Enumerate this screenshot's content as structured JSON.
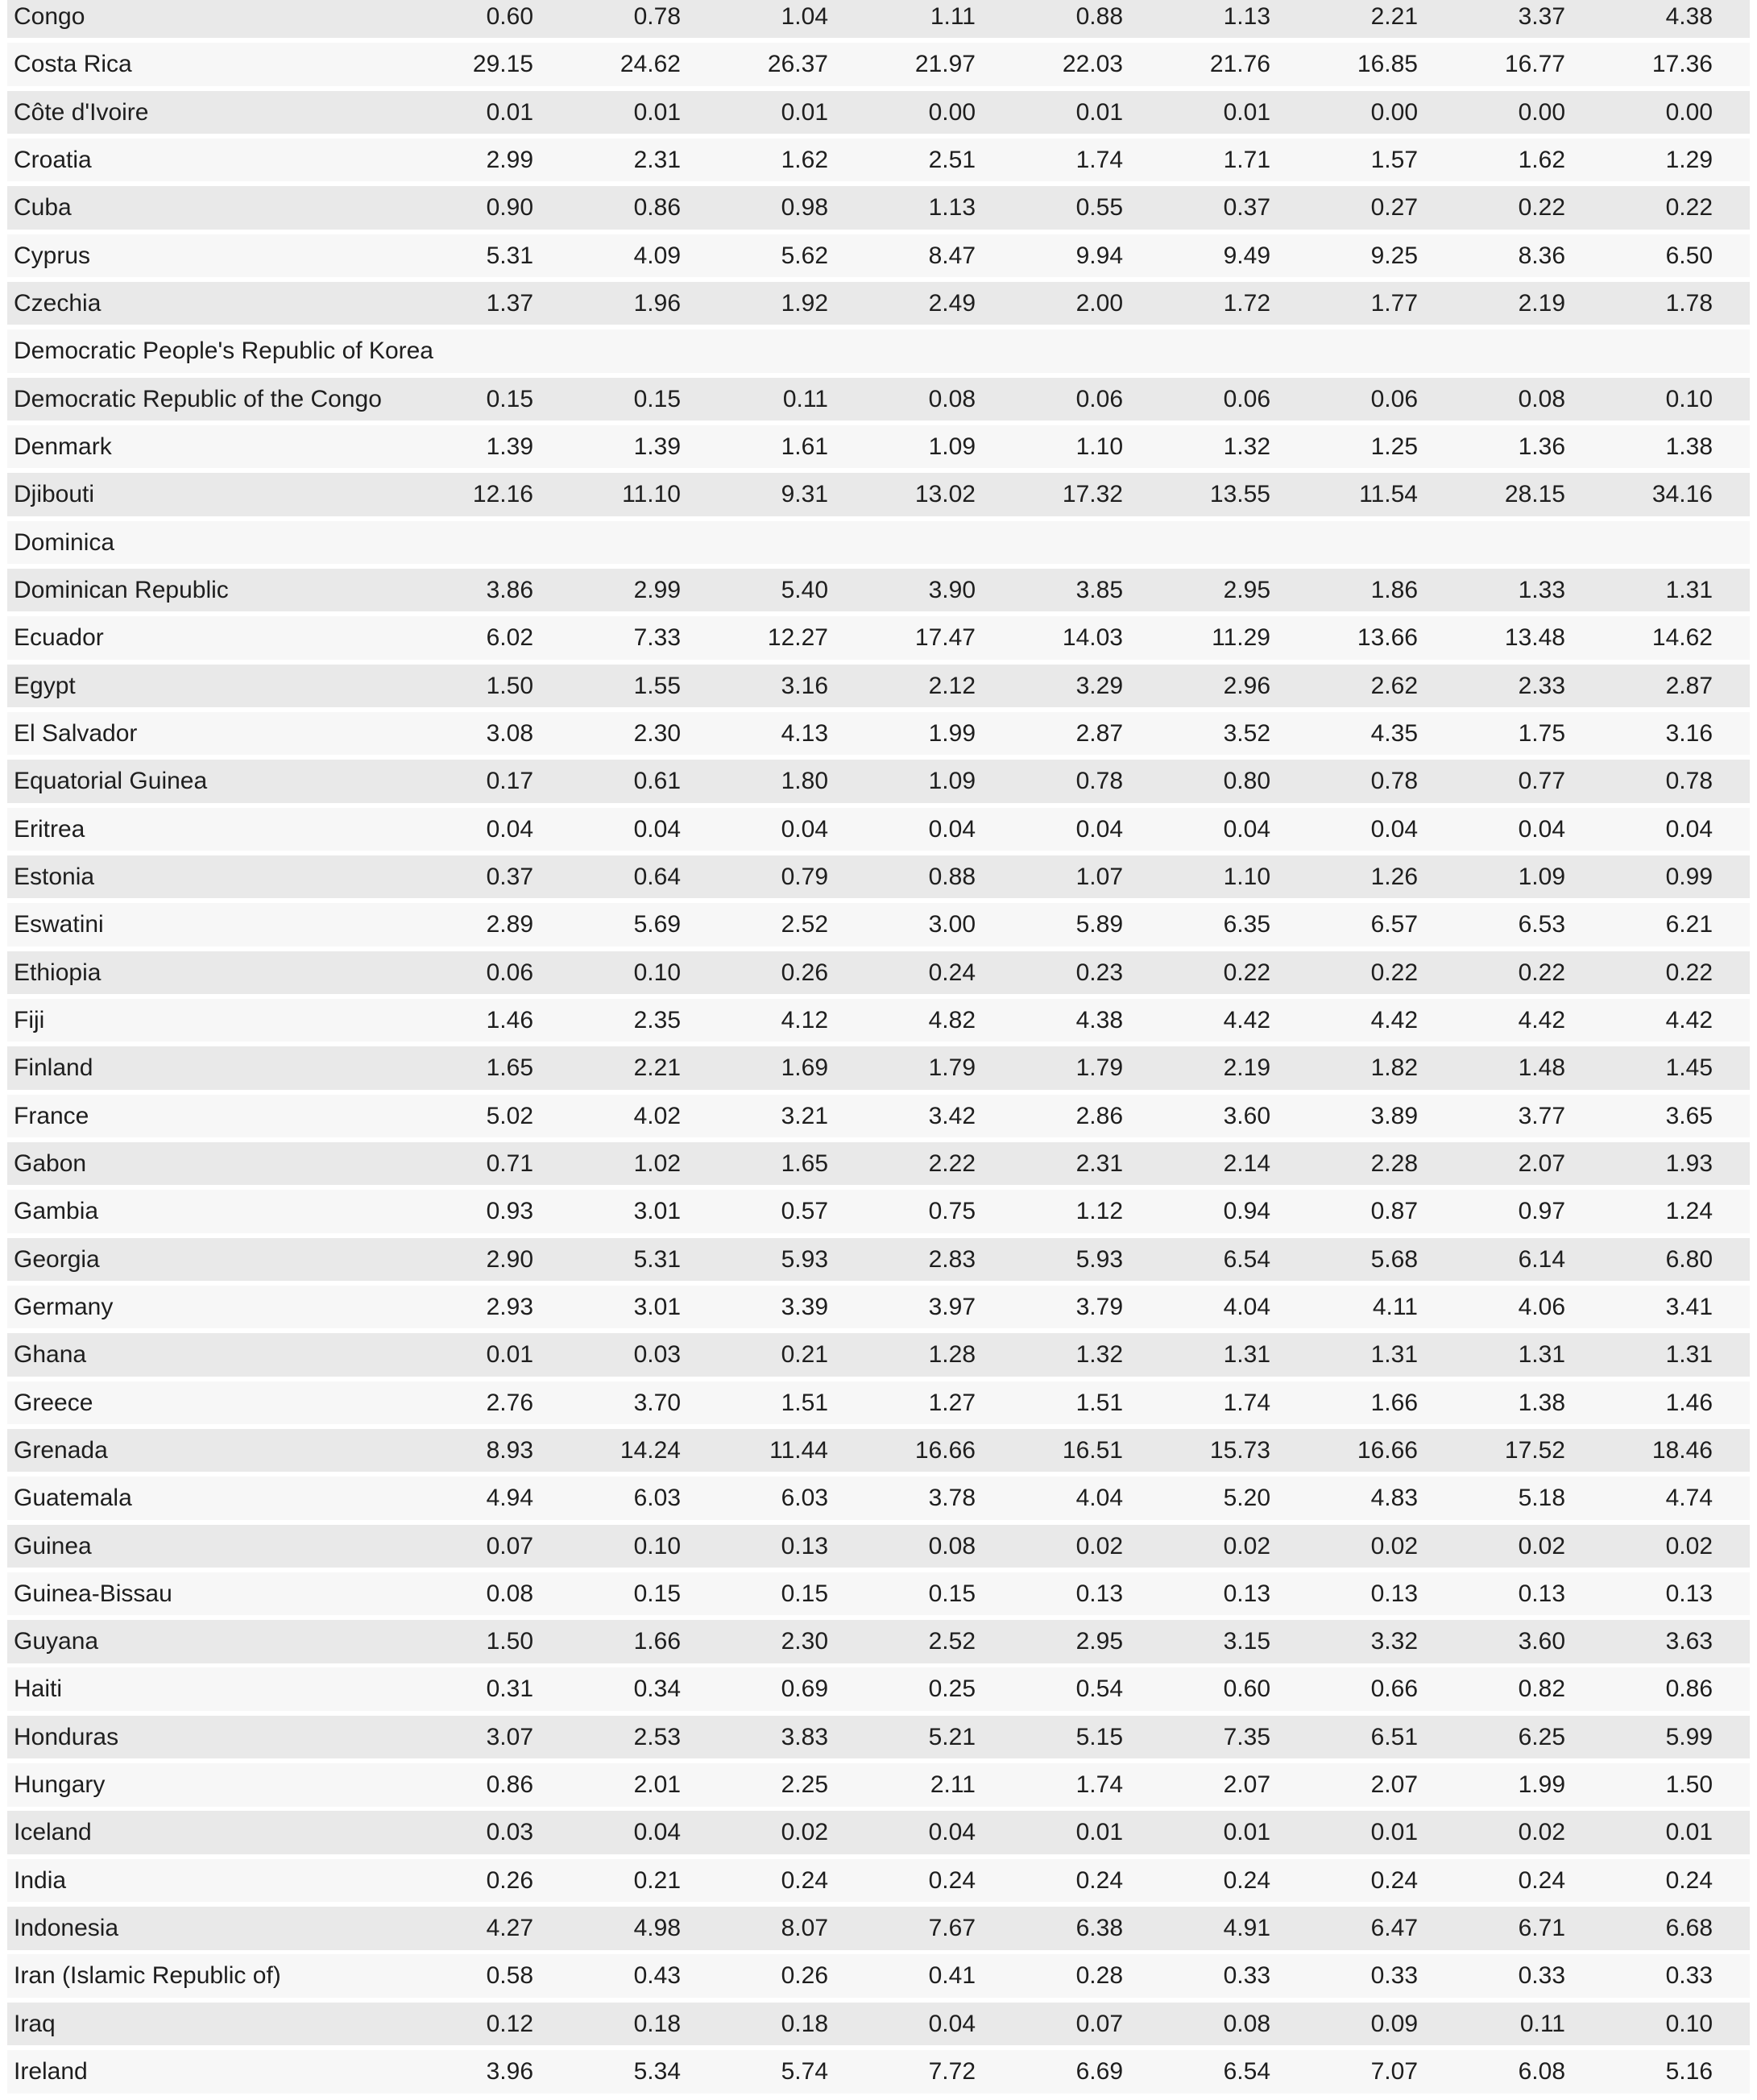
{
  "colors": {
    "stripe_dark": "#e9e9e9",
    "stripe_light": "#f7f7f7",
    "separator": "#ffffff",
    "text": "#1e1e1e",
    "background": "#ffffff"
  },
  "table": {
    "rows": [
      {
        "name": "Congo",
        "values": [
          "0.60",
          "0.78",
          "1.04",
          "1.11",
          "0.88",
          "1.13",
          "2.21",
          "3.37",
          "4.38"
        ]
      },
      {
        "name": "Costa Rica",
        "values": [
          "29.15",
          "24.62",
          "26.37",
          "21.97",
          "22.03",
          "21.76",
          "16.85",
          "16.77",
          "17.36"
        ]
      },
      {
        "name": "Côte d'Ivoire",
        "values": [
          "0.01",
          "0.01",
          "0.01",
          "0.00",
          "0.01",
          "0.01",
          "0.00",
          "0.00",
          "0.00"
        ]
      },
      {
        "name": "Croatia",
        "values": [
          "2.99",
          "2.31",
          "1.62",
          "2.51",
          "1.74",
          "1.71",
          "1.57",
          "1.62",
          "1.29"
        ]
      },
      {
        "name": "Cuba",
        "values": [
          "0.90",
          "0.86",
          "0.98",
          "1.13",
          "0.55",
          "0.37",
          "0.27",
          "0.22",
          "0.22"
        ]
      },
      {
        "name": "Cyprus",
        "values": [
          "5.31",
          "4.09",
          "5.62",
          "8.47",
          "9.94",
          "9.49",
          "9.25",
          "8.36",
          "6.50"
        ]
      },
      {
        "name": "Czechia",
        "values": [
          "1.37",
          "1.96",
          "1.92",
          "2.49",
          "2.00",
          "1.72",
          "1.77",
          "2.19",
          "1.78"
        ]
      },
      {
        "name": "Democratic People's Republic of Korea",
        "values": [
          "",
          "",
          "",
          "",
          "",
          "",
          "",
          "",
          ""
        ]
      },
      {
        "name": "Democratic Republic of the Congo",
        "values": [
          "0.15",
          "0.15",
          "0.11",
          "0.08",
          "0.06",
          "0.06",
          "0.06",
          "0.08",
          "0.10"
        ]
      },
      {
        "name": "Denmark",
        "values": [
          "1.39",
          "1.39",
          "1.61",
          "1.09",
          "1.10",
          "1.32",
          "1.25",
          "1.36",
          "1.38"
        ]
      },
      {
        "name": "Djibouti",
        "values": [
          "12.16",
          "11.10",
          "9.31",
          "13.02",
          "17.32",
          "13.55",
          "11.54",
          "28.15",
          "34.16"
        ]
      },
      {
        "name": "Dominica",
        "values": [
          "",
          "",
          "",
          "",
          "",
          "",
          "",
          "",
          ""
        ]
      },
      {
        "name": "Dominican Republic",
        "values": [
          "3.86",
          "2.99",
          "5.40",
          "3.90",
          "3.85",
          "2.95",
          "1.86",
          "1.33",
          "1.31"
        ]
      },
      {
        "name": "Ecuador",
        "values": [
          "6.02",
          "7.33",
          "12.27",
          "17.47",
          "14.03",
          "11.29",
          "13.66",
          "13.48",
          "14.62"
        ]
      },
      {
        "name": "Egypt",
        "values": [
          "1.50",
          "1.55",
          "3.16",
          "2.12",
          "3.29",
          "2.96",
          "2.62",
          "2.33",
          "2.87"
        ]
      },
      {
        "name": "El Salvador",
        "values": [
          "3.08",
          "2.30",
          "4.13",
          "1.99",
          "2.87",
          "3.52",
          "4.35",
          "1.75",
          "3.16"
        ]
      },
      {
        "name": "Equatorial Guinea",
        "values": [
          "0.17",
          "0.61",
          "1.80",
          "1.09",
          "0.78",
          "0.80",
          "0.78",
          "0.77",
          "0.78"
        ]
      },
      {
        "name": "Eritrea",
        "values": [
          "0.04",
          "0.04",
          "0.04",
          "0.04",
          "0.04",
          "0.04",
          "0.04",
          "0.04",
          "0.04"
        ]
      },
      {
        "name": "Estonia",
        "values": [
          "0.37",
          "0.64",
          "0.79",
          "0.88",
          "1.07",
          "1.10",
          "1.26",
          "1.09",
          "0.99"
        ]
      },
      {
        "name": "Eswatini",
        "values": [
          "2.89",
          "5.69",
          "2.52",
          "3.00",
          "5.89",
          "6.35",
          "6.57",
          "6.53",
          "6.21"
        ]
      },
      {
        "name": "Ethiopia",
        "values": [
          "0.06",
          "0.10",
          "0.26",
          "0.24",
          "0.23",
          "0.22",
          "0.22",
          "0.22",
          "0.22"
        ]
      },
      {
        "name": "Fiji",
        "values": [
          "1.46",
          "2.35",
          "4.12",
          "4.82",
          "4.38",
          "4.42",
          "4.42",
          "4.42",
          "4.42"
        ]
      },
      {
        "name": "Finland",
        "values": [
          "1.65",
          "2.21",
          "1.69",
          "1.79",
          "1.79",
          "2.19",
          "1.82",
          "1.48",
          "1.45"
        ]
      },
      {
        "name": "France",
        "values": [
          "5.02",
          "4.02",
          "3.21",
          "3.42",
          "2.86",
          "3.60",
          "3.89",
          "3.77",
          "3.65"
        ]
      },
      {
        "name": "Gabon",
        "values": [
          "0.71",
          "1.02",
          "1.65",
          "2.22",
          "2.31",
          "2.14",
          "2.28",
          "2.07",
          "1.93"
        ]
      },
      {
        "name": "Gambia",
        "values": [
          "0.93",
          "3.01",
          "0.57",
          "0.75",
          "1.12",
          "0.94",
          "0.87",
          "0.97",
          "1.24"
        ]
      },
      {
        "name": "Georgia",
        "values": [
          "2.90",
          "5.31",
          "5.93",
          "2.83",
          "5.93",
          "6.54",
          "5.68",
          "6.14",
          "6.80"
        ]
      },
      {
        "name": "Germany",
        "values": [
          "2.93",
          "3.01",
          "3.39",
          "3.97",
          "3.79",
          "4.04",
          "4.11",
          "4.06",
          "3.41"
        ]
      },
      {
        "name": "Ghana",
        "values": [
          "0.01",
          "0.03",
          "0.21",
          "1.28",
          "1.32",
          "1.31",
          "1.31",
          "1.31",
          "1.31"
        ]
      },
      {
        "name": "Greece",
        "values": [
          "2.76",
          "3.70",
          "1.51",
          "1.27",
          "1.51",
          "1.74",
          "1.66",
          "1.38",
          "1.46"
        ]
      },
      {
        "name": "Grenada",
        "values": [
          "8.93",
          "14.24",
          "11.44",
          "16.66",
          "16.51",
          "15.73",
          "16.66",
          "17.52",
          "18.46"
        ]
      },
      {
        "name": "Guatemala",
        "values": [
          "4.94",
          "6.03",
          "6.03",
          "3.78",
          "4.04",
          "5.20",
          "4.83",
          "5.18",
          "4.74"
        ]
      },
      {
        "name": "Guinea",
        "values": [
          "0.07",
          "0.10",
          "0.13",
          "0.08",
          "0.02",
          "0.02",
          "0.02",
          "0.02",
          "0.02"
        ]
      },
      {
        "name": "Guinea-Bissau",
        "values": [
          "0.08",
          "0.15",
          "0.15",
          "0.15",
          "0.13",
          "0.13",
          "0.13",
          "0.13",
          "0.13"
        ]
      },
      {
        "name": "Guyana",
        "values": [
          "1.50",
          "1.66",
          "2.30",
          "2.52",
          "2.95",
          "3.15",
          "3.32",
          "3.60",
          "3.63"
        ]
      },
      {
        "name": "Haiti",
        "values": [
          "0.31",
          "0.34",
          "0.69",
          "0.25",
          "0.54",
          "0.60",
          "0.66",
          "0.82",
          "0.86"
        ]
      },
      {
        "name": "Honduras",
        "values": [
          "3.07",
          "2.53",
          "3.83",
          "5.21",
          "5.15",
          "7.35",
          "6.51",
          "6.25",
          "5.99"
        ]
      },
      {
        "name": "Hungary",
        "values": [
          "0.86",
          "2.01",
          "2.25",
          "2.11",
          "1.74",
          "2.07",
          "2.07",
          "1.99",
          "1.50"
        ]
      },
      {
        "name": "Iceland",
        "values": [
          "0.03",
          "0.04",
          "0.02",
          "0.04",
          "0.01",
          "0.01",
          "0.01",
          "0.02",
          "0.01"
        ]
      },
      {
        "name": "India",
        "values": [
          "0.26",
          "0.21",
          "0.24",
          "0.24",
          "0.24",
          "0.24",
          "0.24",
          "0.24",
          "0.24"
        ]
      },
      {
        "name": "Indonesia",
        "values": [
          "4.27",
          "4.98",
          "8.07",
          "7.67",
          "6.38",
          "4.91",
          "6.47",
          "6.71",
          "6.68"
        ]
      },
      {
        "name": "Iran (Islamic Republic of)",
        "values": [
          "0.58",
          "0.43",
          "0.26",
          "0.41",
          "0.28",
          "0.33",
          "0.33",
          "0.33",
          "0.33"
        ]
      },
      {
        "name": "Iraq",
        "values": [
          "0.12",
          "0.18",
          "0.18",
          "0.04",
          "0.07",
          "0.08",
          "0.09",
          "0.11",
          "0.10"
        ]
      },
      {
        "name": "Ireland",
        "values": [
          "3.96",
          "5.34",
          "5.74",
          "7.72",
          "6.69",
          "6.54",
          "7.07",
          "6.08",
          "5.16"
        ]
      }
    ]
  }
}
